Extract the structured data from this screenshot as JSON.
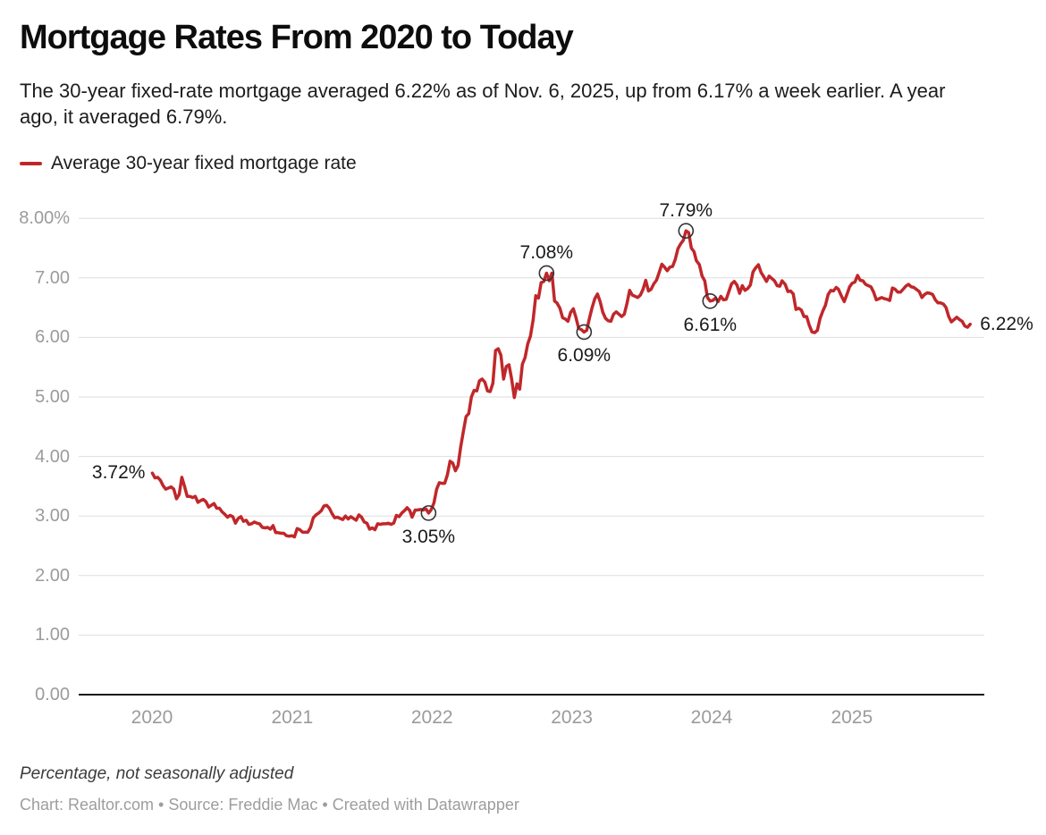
{
  "header": {
    "title": "Mortgage Rates From 2020 to Today",
    "subtitle": "The 30-year fixed-rate mortgage averaged 6.22% as of Nov. 6, 2025, up from 6.17% a week earlier. A year ago, it averaged 6.79%."
  },
  "legend": {
    "label": "Average 30-year fixed mortgage rate",
    "color": "#c0272a"
  },
  "footer": {
    "note": "Percentage, not seasonally adjusted",
    "byline": "Chart: Realtor.com • Source: Freddie Mac • Created with Datawrapper"
  },
  "chart_data": {
    "type": "line",
    "title": "Mortgage Rates From 2020 to Today",
    "series_name": "Average 30-year fixed mortgage rate",
    "line_color": "#c0272a",
    "grid": "horizontal",
    "legend_position": "top-left",
    "ylim": [
      0,
      8
    ],
    "date_range": [
      "2020-01-02",
      "2025-11-06"
    ],
    "y_ticks": [
      {
        "label": "8.00%",
        "value": 8
      },
      {
        "label": "7.00",
        "value": 7
      },
      {
        "label": "6.00",
        "value": 6
      },
      {
        "label": "5.00",
        "value": 5
      },
      {
        "label": "4.00",
        "value": 4
      },
      {
        "label": "3.00",
        "value": 3
      },
      {
        "label": "2.00",
        "value": 2
      },
      {
        "label": "1.00",
        "value": 1
      },
      {
        "label": "0.00",
        "value": 0
      }
    ],
    "x_ticks": [
      {
        "label": "2020",
        "year": 2020
      },
      {
        "label": "2021",
        "year": 2021
      },
      {
        "label": "2022",
        "year": 2022
      },
      {
        "label": "2023",
        "year": 2023
      },
      {
        "label": "2024",
        "year": 2024
      },
      {
        "label": "2025",
        "year": 2025
      }
    ],
    "annotations": [
      {
        "date": "2020-01-02",
        "value": 3.72,
        "label": "3.72%",
        "placement": "left",
        "marker": false
      },
      {
        "date": "2021-12-23",
        "value": 3.05,
        "label": "3.05%",
        "placement": "below",
        "marker": true
      },
      {
        "date": "2022-10-27",
        "value": 7.08,
        "label": "7.08%",
        "placement": "above",
        "marker": true
      },
      {
        "date": "2023-02-02",
        "value": 6.09,
        "label": "6.09%",
        "placement": "below",
        "marker": true
      },
      {
        "date": "2023-10-26",
        "value": 7.79,
        "label": "7.79%",
        "placement": "above",
        "marker": true
      },
      {
        "date": "2023-12-28",
        "value": 6.61,
        "label": "6.61%",
        "placement": "below",
        "marker": true
      },
      {
        "date": "2025-11-06",
        "value": 6.22,
        "label": "6.22%",
        "placement": "right",
        "marker": false
      }
    ],
    "points": [
      [
        "2020-01-02",
        3.72
      ],
      [
        "2020-01-09",
        3.64
      ],
      [
        "2020-01-16",
        3.65
      ],
      [
        "2020-01-23",
        3.6
      ],
      [
        "2020-01-30",
        3.51
      ],
      [
        "2020-02-06",
        3.45
      ],
      [
        "2020-02-13",
        3.47
      ],
      [
        "2020-02-20",
        3.49
      ],
      [
        "2020-02-27",
        3.45
      ],
      [
        "2020-03-05",
        3.29
      ],
      [
        "2020-03-12",
        3.36
      ],
      [
        "2020-03-19",
        3.65
      ],
      [
        "2020-03-26",
        3.5
      ],
      [
        "2020-04-02",
        3.33
      ],
      [
        "2020-04-09",
        3.33
      ],
      [
        "2020-04-16",
        3.31
      ],
      [
        "2020-04-23",
        3.33
      ],
      [
        "2020-04-30",
        3.23
      ],
      [
        "2020-05-07",
        3.26
      ],
      [
        "2020-05-14",
        3.28
      ],
      [
        "2020-05-21",
        3.24
      ],
      [
        "2020-05-28",
        3.15
      ],
      [
        "2020-06-04",
        3.18
      ],
      [
        "2020-06-11",
        3.21
      ],
      [
        "2020-06-18",
        3.13
      ],
      [
        "2020-06-25",
        3.13
      ],
      [
        "2020-07-02",
        3.07
      ],
      [
        "2020-07-09",
        3.03
      ],
      [
        "2020-07-16",
        2.98
      ],
      [
        "2020-07-23",
        3.01
      ],
      [
        "2020-07-30",
        2.99
      ],
      [
        "2020-08-06",
        2.88
      ],
      [
        "2020-08-13",
        2.96
      ],
      [
        "2020-08-20",
        2.99
      ],
      [
        "2020-08-27",
        2.91
      ],
      [
        "2020-09-03",
        2.93
      ],
      [
        "2020-09-10",
        2.86
      ],
      [
        "2020-09-17",
        2.87
      ],
      [
        "2020-09-24",
        2.9
      ],
      [
        "2020-10-01",
        2.88
      ],
      [
        "2020-10-08",
        2.87
      ],
      [
        "2020-10-15",
        2.81
      ],
      [
        "2020-10-22",
        2.8
      ],
      [
        "2020-10-29",
        2.81
      ],
      [
        "2020-11-05",
        2.78
      ],
      [
        "2020-11-12",
        2.84
      ],
      [
        "2020-11-19",
        2.72
      ],
      [
        "2020-11-25",
        2.72
      ],
      [
        "2020-12-03",
        2.71
      ],
      [
        "2020-12-10",
        2.71
      ],
      [
        "2020-12-17",
        2.67
      ],
      [
        "2020-12-24",
        2.66
      ],
      [
        "2020-12-31",
        2.67
      ],
      [
        "2021-01-07",
        2.65
      ],
      [
        "2021-01-14",
        2.79
      ],
      [
        "2021-01-21",
        2.77
      ],
      [
        "2021-01-28",
        2.73
      ],
      [
        "2021-02-04",
        2.73
      ],
      [
        "2021-02-11",
        2.73
      ],
      [
        "2021-02-18",
        2.81
      ],
      [
        "2021-02-25",
        2.97
      ],
      [
        "2021-03-04",
        3.02
      ],
      [
        "2021-03-11",
        3.05
      ],
      [
        "2021-03-18",
        3.09
      ],
      [
        "2021-03-25",
        3.17
      ],
      [
        "2021-04-01",
        3.18
      ],
      [
        "2021-04-08",
        3.13
      ],
      [
        "2021-04-15",
        3.04
      ],
      [
        "2021-04-22",
        2.97
      ],
      [
        "2021-04-29",
        2.98
      ],
      [
        "2021-05-06",
        2.96
      ],
      [
        "2021-05-13",
        2.94
      ],
      [
        "2021-05-20",
        3.0
      ],
      [
        "2021-05-27",
        2.95
      ],
      [
        "2021-06-03",
        2.99
      ],
      [
        "2021-06-10",
        2.96
      ],
      [
        "2021-06-17",
        2.93
      ],
      [
        "2021-06-24",
        3.02
      ],
      [
        "2021-07-01",
        2.98
      ],
      [
        "2021-07-08",
        2.9
      ],
      [
        "2021-07-15",
        2.88
      ],
      [
        "2021-07-22",
        2.78
      ],
      [
        "2021-07-29",
        2.8
      ],
      [
        "2021-08-05",
        2.77
      ],
      [
        "2021-08-12",
        2.87
      ],
      [
        "2021-08-19",
        2.86
      ],
      [
        "2021-08-26",
        2.87
      ],
      [
        "2021-09-02",
        2.87
      ],
      [
        "2021-09-09",
        2.88
      ],
      [
        "2021-09-16",
        2.86
      ],
      [
        "2021-09-23",
        2.88
      ],
      [
        "2021-09-30",
        3.01
      ],
      [
        "2021-10-07",
        2.99
      ],
      [
        "2021-10-14",
        3.05
      ],
      [
        "2021-10-21",
        3.09
      ],
      [
        "2021-10-28",
        3.14
      ],
      [
        "2021-11-04",
        3.09
      ],
      [
        "2021-11-10",
        2.98
      ],
      [
        "2021-11-18",
        3.1
      ],
      [
        "2021-11-24",
        3.1
      ],
      [
        "2021-12-02",
        3.11
      ],
      [
        "2021-12-09",
        3.1
      ],
      [
        "2021-12-16",
        3.12
      ],
      [
        "2021-12-23",
        3.05
      ],
      [
        "2021-12-30",
        3.11
      ],
      [
        "2022-01-06",
        3.22
      ],
      [
        "2022-01-13",
        3.45
      ],
      [
        "2022-01-20",
        3.56
      ],
      [
        "2022-01-27",
        3.55
      ],
      [
        "2022-02-03",
        3.55
      ],
      [
        "2022-02-10",
        3.69
      ],
      [
        "2022-02-17",
        3.92
      ],
      [
        "2022-02-24",
        3.89
      ],
      [
        "2022-03-03",
        3.76
      ],
      [
        "2022-03-10",
        3.85
      ],
      [
        "2022-03-17",
        4.16
      ],
      [
        "2022-03-24",
        4.42
      ],
      [
        "2022-03-31",
        4.67
      ],
      [
        "2022-04-07",
        4.72
      ],
      [
        "2022-04-14",
        5.0
      ],
      [
        "2022-04-21",
        5.11
      ],
      [
        "2022-04-28",
        5.1
      ],
      [
        "2022-05-05",
        5.27
      ],
      [
        "2022-05-12",
        5.3
      ],
      [
        "2022-05-19",
        5.25
      ],
      [
        "2022-05-26",
        5.1
      ],
      [
        "2022-06-02",
        5.09
      ],
      [
        "2022-06-09",
        5.23
      ],
      [
        "2022-06-16",
        5.78
      ],
      [
        "2022-06-23",
        5.81
      ],
      [
        "2022-06-30",
        5.7
      ],
      [
        "2022-07-07",
        5.3
      ],
      [
        "2022-07-14",
        5.51
      ],
      [
        "2022-07-21",
        5.54
      ],
      [
        "2022-07-28",
        5.3
      ],
      [
        "2022-08-04",
        4.99
      ],
      [
        "2022-08-11",
        5.22
      ],
      [
        "2022-08-18",
        5.13
      ],
      [
        "2022-08-25",
        5.55
      ],
      [
        "2022-09-01",
        5.66
      ],
      [
        "2022-09-08",
        5.89
      ],
      [
        "2022-09-15",
        6.02
      ],
      [
        "2022-09-22",
        6.29
      ],
      [
        "2022-09-29",
        6.7
      ],
      [
        "2022-10-06",
        6.66
      ],
      [
        "2022-10-13",
        6.92
      ],
      [
        "2022-10-20",
        6.94
      ],
      [
        "2022-10-27",
        7.08
      ],
      [
        "2022-11-03",
        6.95
      ],
      [
        "2022-11-10",
        7.08
      ],
      [
        "2022-11-17",
        6.61
      ],
      [
        "2022-11-23",
        6.58
      ],
      [
        "2022-12-01",
        6.49
      ],
      [
        "2022-12-08",
        6.33
      ],
      [
        "2022-12-15",
        6.31
      ],
      [
        "2022-12-22",
        6.27
      ],
      [
        "2022-12-29",
        6.42
      ],
      [
        "2023-01-05",
        6.48
      ],
      [
        "2023-01-12",
        6.33
      ],
      [
        "2023-01-19",
        6.15
      ],
      [
        "2023-01-26",
        6.13
      ],
      [
        "2023-02-02",
        6.09
      ],
      [
        "2023-02-09",
        6.12
      ],
      [
        "2023-02-16",
        6.32
      ],
      [
        "2023-02-23",
        6.5
      ],
      [
        "2023-03-02",
        6.65
      ],
      [
        "2023-03-09",
        6.73
      ],
      [
        "2023-03-16",
        6.6
      ],
      [
        "2023-03-23",
        6.42
      ],
      [
        "2023-03-30",
        6.32
      ],
      [
        "2023-04-06",
        6.28
      ],
      [
        "2023-04-13",
        6.27
      ],
      [
        "2023-04-20",
        6.39
      ],
      [
        "2023-04-27",
        6.43
      ],
      [
        "2023-05-04",
        6.39
      ],
      [
        "2023-05-11",
        6.35
      ],
      [
        "2023-05-18",
        6.39
      ],
      [
        "2023-05-25",
        6.57
      ],
      [
        "2023-06-01",
        6.79
      ],
      [
        "2023-06-08",
        6.71
      ],
      [
        "2023-06-15",
        6.69
      ],
      [
        "2023-06-22",
        6.67
      ],
      [
        "2023-06-29",
        6.71
      ],
      [
        "2023-07-06",
        6.81
      ],
      [
        "2023-07-13",
        6.96
      ],
      [
        "2023-07-20",
        6.78
      ],
      [
        "2023-07-27",
        6.81
      ],
      [
        "2023-08-03",
        6.9
      ],
      [
        "2023-08-10",
        6.96
      ],
      [
        "2023-08-17",
        7.09
      ],
      [
        "2023-08-24",
        7.23
      ],
      [
        "2023-08-31",
        7.18
      ],
      [
        "2023-09-07",
        7.12
      ],
      [
        "2023-09-14",
        7.18
      ],
      [
        "2023-09-21",
        7.19
      ],
      [
        "2023-09-28",
        7.31
      ],
      [
        "2023-10-05",
        7.49
      ],
      [
        "2023-10-12",
        7.57
      ],
      [
        "2023-10-19",
        7.63
      ],
      [
        "2023-10-26",
        7.79
      ],
      [
        "2023-11-02",
        7.76
      ],
      [
        "2023-11-09",
        7.5
      ],
      [
        "2023-11-16",
        7.44
      ],
      [
        "2023-11-22",
        7.29
      ],
      [
        "2023-11-30",
        7.22
      ],
      [
        "2023-12-07",
        7.03
      ],
      [
        "2023-12-14",
        6.95
      ],
      [
        "2023-12-21",
        6.67
      ],
      [
        "2023-12-28",
        6.61
      ],
      [
        "2024-01-04",
        6.62
      ],
      [
        "2024-01-11",
        6.66
      ],
      [
        "2024-01-18",
        6.6
      ],
      [
        "2024-01-25",
        6.69
      ],
      [
        "2024-02-01",
        6.63
      ],
      [
        "2024-02-08",
        6.64
      ],
      [
        "2024-02-15",
        6.77
      ],
      [
        "2024-02-22",
        6.9
      ],
      [
        "2024-02-29",
        6.94
      ],
      [
        "2024-03-07",
        6.88
      ],
      [
        "2024-03-14",
        6.74
      ],
      [
        "2024-03-21",
        6.87
      ],
      [
        "2024-03-28",
        6.79
      ],
      [
        "2024-04-04",
        6.82
      ],
      [
        "2024-04-11",
        6.88
      ],
      [
        "2024-04-18",
        7.1
      ],
      [
        "2024-04-25",
        7.17
      ],
      [
        "2024-05-02",
        7.22
      ],
      [
        "2024-05-09",
        7.09
      ],
      [
        "2024-05-16",
        7.02
      ],
      [
        "2024-05-23",
        6.94
      ],
      [
        "2024-05-30",
        7.03
      ],
      [
        "2024-06-06",
        6.99
      ],
      [
        "2024-06-13",
        6.95
      ],
      [
        "2024-06-20",
        6.87
      ],
      [
        "2024-06-27",
        6.86
      ],
      [
        "2024-07-03",
        6.95
      ],
      [
        "2024-07-11",
        6.89
      ],
      [
        "2024-07-18",
        6.77
      ],
      [
        "2024-07-25",
        6.78
      ],
      [
        "2024-08-01",
        6.73
      ],
      [
        "2024-08-08",
        6.47
      ],
      [
        "2024-08-15",
        6.49
      ],
      [
        "2024-08-22",
        6.46
      ],
      [
        "2024-08-29",
        6.35
      ],
      [
        "2024-09-05",
        6.35
      ],
      [
        "2024-09-12",
        6.2
      ],
      [
        "2024-09-19",
        6.09
      ],
      [
        "2024-09-26",
        6.08
      ],
      [
        "2024-10-03",
        6.12
      ],
      [
        "2024-10-10",
        6.32
      ],
      [
        "2024-10-17",
        6.44
      ],
      [
        "2024-10-24",
        6.54
      ],
      [
        "2024-10-31",
        6.72
      ],
      [
        "2024-11-07",
        6.79
      ],
      [
        "2024-11-14",
        6.78
      ],
      [
        "2024-11-21",
        6.84
      ],
      [
        "2024-11-27",
        6.81
      ],
      [
        "2024-12-05",
        6.69
      ],
      [
        "2024-12-12",
        6.6
      ],
      [
        "2024-12-19",
        6.72
      ],
      [
        "2024-12-26",
        6.85
      ],
      [
        "2025-01-02",
        6.91
      ],
      [
        "2025-01-09",
        6.93
      ],
      [
        "2025-01-16",
        7.04
      ],
      [
        "2025-01-23",
        6.96
      ],
      [
        "2025-01-30",
        6.95
      ],
      [
        "2025-02-06",
        6.89
      ],
      [
        "2025-02-13",
        6.87
      ],
      [
        "2025-02-20",
        6.85
      ],
      [
        "2025-02-27",
        6.76
      ],
      [
        "2025-03-06",
        6.63
      ],
      [
        "2025-03-13",
        6.65
      ],
      [
        "2025-03-20",
        6.67
      ],
      [
        "2025-03-27",
        6.65
      ],
      [
        "2025-04-03",
        6.64
      ],
      [
        "2025-04-10",
        6.62
      ],
      [
        "2025-04-17",
        6.83
      ],
      [
        "2025-04-24",
        6.81
      ],
      [
        "2025-05-01",
        6.76
      ],
      [
        "2025-05-08",
        6.76
      ],
      [
        "2025-05-15",
        6.81
      ],
      [
        "2025-05-22",
        6.86
      ],
      [
        "2025-05-29",
        6.89
      ],
      [
        "2025-06-05",
        6.85
      ],
      [
        "2025-06-12",
        6.84
      ],
      [
        "2025-06-18",
        6.81
      ],
      [
        "2025-06-26",
        6.77
      ],
      [
        "2025-07-03",
        6.67
      ],
      [
        "2025-07-10",
        6.72
      ],
      [
        "2025-07-17",
        6.75
      ],
      [
        "2025-07-24",
        6.74
      ],
      [
        "2025-07-31",
        6.72
      ],
      [
        "2025-08-07",
        6.63
      ],
      [
        "2025-08-14",
        6.58
      ],
      [
        "2025-08-21",
        6.58
      ],
      [
        "2025-08-28",
        6.56
      ],
      [
        "2025-09-04",
        6.5
      ],
      [
        "2025-09-11",
        6.35
      ],
      [
        "2025-09-18",
        6.26
      ],
      [
        "2025-09-25",
        6.3
      ],
      [
        "2025-10-02",
        6.34
      ],
      [
        "2025-10-09",
        6.3
      ],
      [
        "2025-10-16",
        6.27
      ],
      [
        "2025-10-23",
        6.19
      ],
      [
        "2025-10-30",
        6.17
      ],
      [
        "2025-11-06",
        6.22
      ]
    ]
  }
}
